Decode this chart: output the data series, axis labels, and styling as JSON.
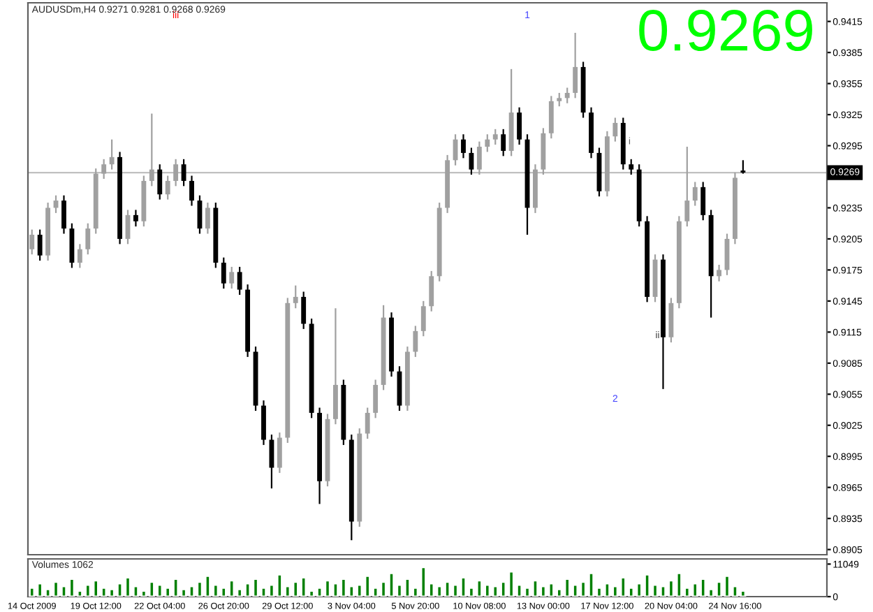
{
  "chart_data": [
    {
      "type": "candlestick",
      "title": "AUDUSDm,H4 0.9271 0.9281 0.9268 0.9269",
      "tick_labels": "y",
      "grid": false,
      "legend": false,
      "categories": [
        null,
        null,
        null,
        null,
        null,
        null,
        null,
        null,
        null,
        null,
        null,
        null,
        null,
        null,
        null,
        null,
        null,
        null,
        null,
        null,
        null,
        null,
        null,
        null,
        null,
        null,
        null,
        null,
        null,
        null,
        null,
        null,
        null,
        null,
        null,
        null,
        null,
        null,
        null,
        null,
        null,
        null,
        null,
        null,
        null,
        null,
        null,
        null,
        null,
        null,
        null,
        null,
        null,
        null,
        null,
        null,
        null,
        null,
        null,
        null,
        null,
        null,
        null,
        null,
        null,
        null,
        null,
        null,
        null,
        null,
        null,
        null,
        null,
        null,
        null,
        null,
        null,
        null,
        null,
        null,
        null,
        null,
        null,
        null,
        null,
        null,
        null,
        null,
        null,
        null,
        null,
        null,
        null,
        null,
        null,
        null,
        null,
        null,
        null,
        null
      ],
      "series": [
        {
          "colors": [
            "#a0a0a0",
            "#000000",
            "#a0a0a0",
            "#a0a0a0",
            "#000000",
            "#000000",
            "#a0a0a0",
            "#a0a0a0",
            "#a0a0a0",
            "#a0a0a0",
            "#a0a0a0",
            "#000000",
            "#a0a0a0",
            "#000000",
            "#a0a0a0",
            "#a0a0a0",
            "#000000",
            "#a0a0a0",
            "#a0a0a0",
            "#000000",
            "#000000",
            "#000000",
            "#a0a0a0",
            "#000000",
            "#000000",
            "#a0a0a0",
            "#000000",
            "#000000",
            "#000000",
            "#000000",
            "#000000",
            "#a0a0a0",
            "#a0a0a0",
            "#a0a0a0",
            "#000000",
            "#000000",
            "#000000",
            "#a0a0a0",
            "#a0a0a0",
            "#000000",
            "#000000",
            "#a0a0a0",
            "#a0a0a0",
            "#a0a0a0",
            "#a0a0a0",
            "#000000",
            "#000000",
            "#a0a0a0",
            "#a0a0a0",
            "#a0a0a0",
            "#a0a0a0",
            "#a0a0a0",
            "#a0a0a0",
            "#a0a0a0",
            "#000000",
            "#000000",
            "#a0a0a0",
            "#a0a0a0",
            "#a0a0a0",
            "#000000",
            "#a0a0a0",
            "#000000",
            "#000000",
            "#a0a0a0",
            "#a0a0a0",
            "#a0a0a0",
            "#a0a0a0",
            "#a0a0a0",
            "#a0a0a0",
            "#000000",
            "#000000",
            "#000000",
            "#a0a0a0",
            "#a0a0a0",
            "#000000",
            "#000000",
            "#000000",
            "#000000",
            "#a0a0a0",
            "#000000",
            "#a0a0a0",
            "#a0a0a0",
            "#a0a0a0",
            "#a0a0a0",
            "#000000",
            "#000000",
            "#a0a0a0",
            "#a0a0a0",
            "#a0a0a0",
            "#000000",
            null,
            null,
            null,
            null,
            null,
            null,
            null,
            null,
            null,
            null
          ],
          "ohlc": [
            [
              0.9195,
              0.9214,
              0.919,
              0.9209
            ],
            [
              0.9209,
              0.9214,
              0.9184,
              0.9189
            ],
            [
              0.9189,
              0.924,
              0.9184,
              0.9235
            ],
            [
              0.9235,
              0.9247,
              0.923,
              0.9242
            ],
            [
              0.9242,
              0.9247,
              0.921,
              0.9215
            ],
            [
              0.9215,
              0.922,
              0.9177,
              0.9182
            ],
            [
              0.9182,
              0.92,
              0.9177,
              0.9195
            ],
            [
              0.9195,
              0.922,
              0.919,
              0.9215
            ],
            [
              0.9215,
              0.9273,
              0.921,
              0.9268
            ],
            [
              0.9268,
              0.9282,
              0.9263,
              0.9277
            ],
            [
              0.9277,
              0.9301,
              0.9272,
              0.9284
            ],
            [
              0.9284,
              0.9289,
              0.92,
              0.9205
            ],
            [
              0.9205,
              0.9233,
              0.92,
              0.9228
            ],
            [
              0.9228,
              0.9233,
              0.9217,
              0.9222
            ],
            [
              0.9222,
              0.9266,
              0.9217,
              0.9261
            ],
            [
              0.9261,
              0.9326,
              0.9256,
              0.9272
            ],
            [
              0.9272,
              0.9277,
              0.9243,
              0.9248
            ],
            [
              0.9248,
              0.9266,
              0.9243,
              0.9261
            ],
            [
              0.9261,
              0.9282,
              0.9256,
              0.9277
            ],
            [
              0.9277,
              0.9282,
              0.9256,
              0.9261
            ],
            [
              0.9261,
              0.9266,
              0.9237,
              0.9242
            ],
            [
              0.9242,
              0.9247,
              0.921,
              0.9215
            ],
            [
              0.9215,
              0.924,
              0.921,
              0.9235
            ],
            [
              0.9235,
              0.924,
              0.9177,
              0.9182
            ],
            [
              0.9182,
              0.9187,
              0.9157,
              0.9162
            ],
            [
              0.9162,
              0.9178,
              0.9157,
              0.9173
            ],
            [
              0.9173,
              0.9178,
              0.9151,
              0.9156
            ],
            [
              0.9156,
              0.9161,
              0.9091,
              0.9096
            ],
            [
              0.9096,
              0.9101,
              0.9039,
              0.9044
            ],
            [
              0.9044,
              0.9049,
              0.9006,
              0.9011
            ],
            [
              0.9011,
              0.9016,
              0.8964,
              0.8984
            ],
            [
              0.8984,
              0.9018,
              0.8979,
              0.9013
            ],
            [
              0.9013,
              0.9148,
              0.9008,
              0.9143
            ],
            [
              0.9143,
              0.916,
              0.9138,
              0.9149
            ],
            [
              0.9149,
              0.9154,
              0.9118,
              0.9123
            ],
            [
              0.9123,
              0.9128,
              0.9032,
              0.9037
            ],
            [
              0.9037,
              0.9042,
              0.8949,
              0.8971
            ],
            [
              0.8971,
              0.9036,
              0.8966,
              0.9031
            ],
            [
              0.9031,
              0.9138,
              0.9026,
              0.9064
            ],
            [
              0.9064,
              0.9069,
              0.9006,
              0.9011
            ],
            [
              0.9011,
              0.9016,
              0.8914,
              0.8932
            ],
            [
              0.8932,
              0.9022,
              0.8927,
              0.9017
            ],
            [
              0.9017,
              0.9042,
              0.9012,
              0.9037
            ],
            [
              0.9037,
              0.9069,
              0.9032,
              0.9064
            ],
            [
              0.9064,
              0.9141,
              0.9059,
              0.9129
            ],
            [
              0.9129,
              0.9134,
              0.9072,
              0.9077
            ],
            [
              0.9077,
              0.9082,
              0.9039,
              0.9044
            ],
            [
              0.9044,
              0.9101,
              0.9039,
              0.9096
            ],
            [
              0.9096,
              0.9121,
              0.9091,
              0.9116
            ],
            [
              0.9116,
              0.9145,
              0.9111,
              0.914
            ],
            [
              0.914,
              0.9174,
              0.9135,
              0.9169
            ],
            [
              0.9169,
              0.924,
              0.9164,
              0.9235
            ],
            [
              0.9235,
              0.9286,
              0.923,
              0.9281
            ],
            [
              0.9281,
              0.9306,
              0.9276,
              0.9301
            ],
            [
              0.9301,
              0.9306,
              0.9283,
              0.9288
            ],
            [
              0.9288,
              0.9293,
              0.9267,
              0.9272
            ],
            [
              0.9272,
              0.9299,
              0.9267,
              0.9294
            ],
            [
              0.9294,
              0.9306,
              0.9289,
              0.9301
            ],
            [
              0.9301,
              0.9311,
              0.9296,
              0.9306
            ],
            [
              0.9306,
              0.9311,
              0.9285,
              0.929
            ],
            [
              0.929,
              0.9369,
              0.9285,
              0.9327
            ],
            [
              0.9327,
              0.9332,
              0.9296,
              0.9301
            ],
            [
              0.9301,
              0.9306,
              0.9209,
              0.9235
            ],
            [
              0.9235,
              0.9277,
              0.923,
              0.9272
            ],
            [
              0.9272,
              0.9312,
              0.9267,
              0.9307
            ],
            [
              0.9307,
              0.9343,
              0.9302,
              0.9338
            ],
            [
              0.9338,
              0.9346,
              0.9333,
              0.9341
            ],
            [
              0.9341,
              0.9351,
              0.9336,
              0.9346
            ],
            [
              0.9346,
              0.9404,
              0.9341,
              0.9371
            ],
            [
              0.9371,
              0.9376,
              0.9322,
              0.9327
            ],
            [
              0.9327,
              0.9332,
              0.9283,
              0.9288
            ],
            [
              0.9288,
              0.9293,
              0.9246,
              0.9251
            ],
            [
              0.9251,
              0.9309,
              0.9246,
              0.9304
            ],
            [
              0.9304,
              0.9322,
              0.9299,
              0.9317
            ],
            [
              0.9317,
              0.9322,
              0.9272,
              0.9277
            ],
            [
              0.9277,
              0.9282,
              0.9267,
              0.9272
            ],
            [
              0.9272,
              0.9277,
              0.9217,
              0.9222
            ],
            [
              0.9222,
              0.9227,
              0.9144,
              0.9149
            ],
            [
              0.9149,
              0.919,
              0.9144,
              0.9185
            ],
            [
              0.9185,
              0.919,
              0.906,
              0.911
            ],
            [
              0.911,
              0.9148,
              0.9105,
              0.9143
            ],
            [
              0.9143,
              0.9227,
              0.9138,
              0.9222
            ],
            [
              0.9222,
              0.9294,
              0.9217,
              0.9242
            ],
            [
              0.9242,
              0.926,
              0.9237,
              0.9255
            ],
            [
              0.9255,
              0.926,
              0.9223,
              0.9228
            ],
            [
              0.9228,
              0.9233,
              0.9129,
              0.9169
            ],
            [
              0.9169,
              0.918,
              0.9164,
              0.9175
            ],
            [
              0.9175,
              0.921,
              0.917,
              0.9205
            ],
            [
              0.9205,
              0.9269,
              0.92,
              0.9264
            ],
            [
              0.9271,
              0.9281,
              0.9268,
              0.9269
            ],
            null,
            null,
            null,
            null,
            null,
            null,
            null,
            null,
            null,
            null
          ]
        }
      ],
      "ylim": [
        0.89,
        0.9433
      ],
      "yticks": [
        0.9415,
        0.9385,
        0.9355,
        0.9325,
        0.9295,
        0.9235,
        0.9205,
        0.9175,
        0.9145,
        0.9115,
        0.9085,
        0.9055,
        0.9025,
        0.8995,
        0.8965,
        0.8935,
        0.8905
      ],
      "ref_lines": [
        {
          "axis": "y",
          "value": 0.9269,
          "label": "0.9269",
          "color": "#c0c0c0"
        }
      ],
      "annotations": [
        "0.9269",
        "1",
        "2",
        "i",
        "ii",
        "iii"
      ]
    },
    {
      "type": "bar",
      "annotations": [
        "Volumes 1062"
      ],
      "grid": false,
      "legend": false,
      "categories": [
        "14 Oct 2009",
        null,
        null,
        null,
        null,
        null,
        null,
        null,
        "19 Oct 12:00",
        null,
        null,
        null,
        null,
        null,
        null,
        null,
        "22 Oct 04:00",
        null,
        null,
        null,
        null,
        null,
        null,
        null,
        "26 Oct 20:00",
        null,
        null,
        null,
        null,
        null,
        null,
        null,
        "29 Oct 12:00",
        null,
        null,
        null,
        null,
        null,
        null,
        null,
        "3 Nov 04:00",
        null,
        null,
        null,
        null,
        null,
        null,
        null,
        "5 Nov 20:00",
        null,
        null,
        null,
        null,
        null,
        null,
        null,
        "10 Nov 08:00",
        null,
        null,
        null,
        null,
        null,
        null,
        null,
        "13 Nov 00:00",
        null,
        null,
        null,
        null,
        null,
        null,
        null,
        "17 Nov 12:00",
        null,
        null,
        null,
        null,
        null,
        null,
        null,
        "20 Nov 04:00",
        null,
        null,
        null,
        null,
        null,
        null,
        null,
        "24 Nov 16:00",
        null,
        null,
        null,
        null,
        null,
        null,
        null,
        null,
        null,
        null,
        null
      ],
      "color": "#008000",
      "values": [
        3000,
        4500,
        2500,
        5000,
        3500,
        6000,
        2000,
        4000,
        5500,
        3000,
        2500,
        4500,
        6500,
        3500,
        2000,
        5000,
        4000,
        3000,
        6000,
        2500,
        3500,
        5000,
        7000,
        4000,
        3000,
        5500,
        2500,
        4500,
        6000,
        3000,
        4000,
        7500,
        3500,
        5000,
        6500,
        2000,
        3000,
        5500,
        4500,
        6000,
        3500,
        4000,
        7000,
        3000,
        5000,
        8000,
        4000,
        6000,
        3000,
        10000,
        4500,
        3500,
        5000,
        4000,
        6500,
        3000,
        5500,
        4000,
        3500,
        5000,
        8500,
        4000,
        3000,
        5500,
        3500,
        4500,
        2500,
        6000,
        4000,
        5000,
        8000,
        3000,
        4500,
        3500,
        6500,
        3000,
        4500,
        7500,
        4000,
        3500,
        5500,
        8000,
        3000,
        4500,
        6000,
        2500,
        5000,
        7000,
        3500,
        2000,
        null,
        null,
        null,
        null,
        null,
        null,
        null,
        null,
        null,
        null
      ],
      "ylim": [
        0,
        12800
      ],
      "yticks": [
        0,
        11049
      ]
    }
  ]
}
